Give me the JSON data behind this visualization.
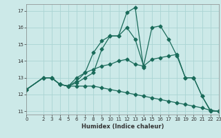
{
  "xlabel": "Humidex (Indice chaleur)",
  "background_color": "#cce9e8",
  "grid_color": "#aad4d3",
  "line_color": "#1a6b5a",
  "xlim": [
    0,
    23
  ],
  "ylim": [
    10.8,
    17.4
  ],
  "yticks": [
    11,
    12,
    13,
    14,
    15,
    16,
    17
  ],
  "xticks": [
    0,
    2,
    3,
    4,
    5,
    6,
    7,
    8,
    9,
    10,
    11,
    12,
    13,
    14,
    15,
    16,
    17,
    18,
    19,
    20,
    21,
    22,
    23
  ],
  "series": [
    {
      "x": [
        0,
        2,
        3,
        4,
        5,
        6,
        7,
        8,
        9,
        10,
        11,
        12,
        13,
        14
      ],
      "y": [
        12.3,
        13.0,
        13.0,
        12.6,
        12.5,
        12.8,
        13.3,
        14.5,
        15.2,
        15.5,
        15.5,
        16.9,
        17.2,
        13.6
      ]
    },
    {
      "x": [
        0,
        2,
        3,
        4,
        5,
        6,
        7,
        8,
        9,
        10,
        11,
        12,
        13,
        14,
        15,
        16,
        17,
        18,
        19,
        20,
        21,
        22,
        23
      ],
      "y": [
        12.3,
        13.0,
        13.0,
        12.6,
        12.5,
        13.0,
        13.3,
        13.5,
        13.7,
        13.8,
        14.0,
        14.1,
        13.8,
        13.7,
        14.1,
        14.2,
        14.3,
        14.4,
        13.0,
        13.0,
        11.9,
        11.05,
        11.0
      ]
    },
    {
      "x": [
        0,
        2,
        3,
        4,
        5,
        6,
        7,
        8,
        9,
        10,
        11,
        12,
        13,
        14,
        15,
        16,
        17,
        18,
        19,
        20,
        21,
        22,
        23
      ],
      "y": [
        12.3,
        13.0,
        13.0,
        12.6,
        12.5,
        12.7,
        13.0,
        13.3,
        14.7,
        15.5,
        15.5,
        16.0,
        15.3,
        13.7,
        16.0,
        16.1,
        15.3,
        14.3,
        13.0,
        13.0,
        11.9,
        11.0,
        11.0
      ]
    },
    {
      "x": [
        0,
        2,
        3,
        4,
        5,
        6,
        7,
        8,
        9,
        10,
        11,
        12,
        13,
        14,
        15,
        16,
        17,
        18,
        19,
        20,
        21,
        22,
        23
      ],
      "y": [
        12.3,
        13.0,
        13.0,
        12.6,
        12.5,
        12.5,
        12.5,
        12.5,
        12.4,
        12.3,
        12.2,
        12.1,
        12.0,
        11.9,
        11.8,
        11.7,
        11.6,
        11.5,
        11.4,
        11.3,
        11.2,
        11.05,
        11.0
      ]
    }
  ]
}
